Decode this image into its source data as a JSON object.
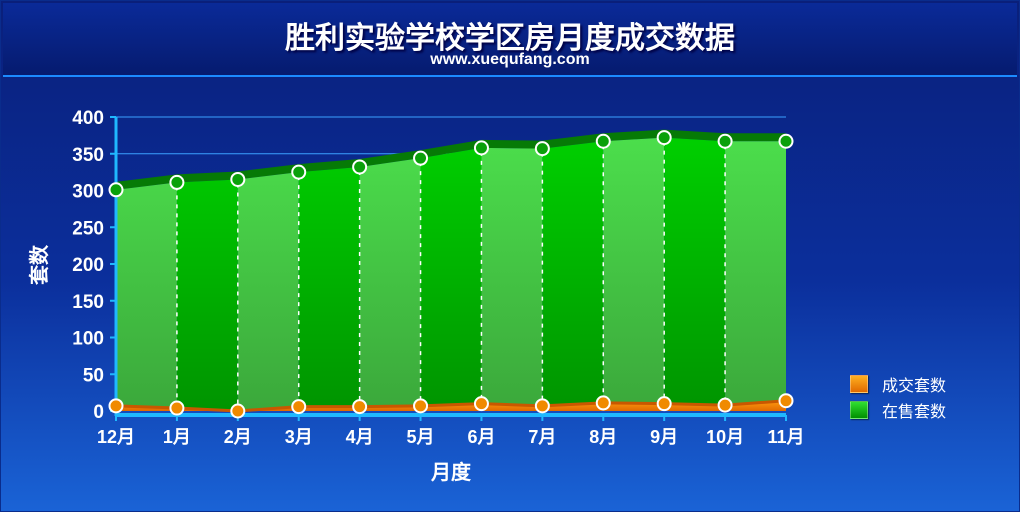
{
  "title": "胜利实验学校学区房月度成交数据",
  "subtitle": "www.xuequfang.com",
  "colors": {
    "sold": "#f08a00",
    "on_sale": "#19c31b"
  },
  "chart_data": {
    "type": "area",
    "xlabel": "月度",
    "ylabel": "套数",
    "ylim": [
      0,
      400
    ],
    "y_ticks": [
      0,
      50,
      100,
      150,
      200,
      250,
      300,
      350,
      400
    ],
    "categories": [
      "12月",
      "1月",
      "2月",
      "3月",
      "4月",
      "5月",
      "6月",
      "7月",
      "8月",
      "9月",
      "10月",
      "11月"
    ],
    "series": [
      {
        "name": "成交套数",
        "values": [
          7,
          4,
          0,
          6,
          6,
          7,
          10,
          7,
          11,
          10,
          8,
          14
        ]
      },
      {
        "name": "在售套数",
        "values": [
          301,
          311,
          315,
          325,
          332,
          344,
          358,
          357,
          367,
          372,
          367,
          367
        ]
      }
    ],
    "legend_position": "right",
    "grid": true
  }
}
